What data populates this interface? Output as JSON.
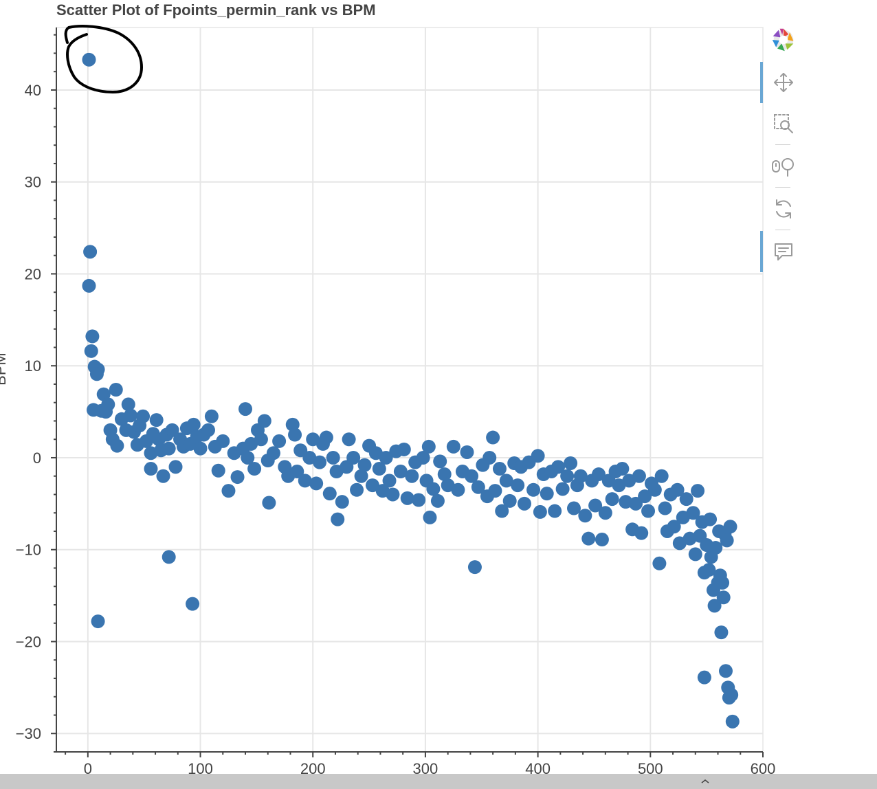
{
  "window": {
    "title": "Scatter Plot of Fpoints_permin_rank vs BPM"
  },
  "toolbar": {
    "tools": [
      {
        "name": "bokeh-logo",
        "icon": "bokeh-logo-icon"
      },
      {
        "name": "pan",
        "icon": "pan-icon",
        "active": true
      },
      {
        "name": "box-zoom",
        "icon": "box-zoom-icon"
      },
      {
        "name": "wheel-zoom",
        "icon": "wheel-zoom-icon"
      },
      {
        "name": "reset",
        "icon": "reset-icon"
      },
      {
        "name": "hover",
        "icon": "hover-icon",
        "active": true
      }
    ]
  },
  "colors": {
    "points": "#3a75b0",
    "grid": "#e6e6e6",
    "axis": "#444444",
    "annotation": "#000000"
  },
  "chart_data": {
    "type": "scatter",
    "title": "Scatter Plot of Fpoints_permin_rank vs BPM",
    "xlabel": "",
    "ylabel": "BPM",
    "xlim": [
      -28,
      600
    ],
    "ylim": [
      -32,
      46.8
    ],
    "x_ticks": [
      0,
      100,
      200,
      300,
      400,
      500,
      600
    ],
    "x_tick_labels": [
      "0",
      "100",
      "200",
      "300",
      "400",
      "500",
      "600"
    ],
    "y_ticks": [
      -30,
      -20,
      -10,
      0,
      10,
      20,
      30,
      40
    ],
    "y_tick_labels": [
      "−30",
      "−20",
      "−10",
      "0",
      "10",
      "20",
      "30",
      "40"
    ],
    "grid": true,
    "points": [
      [
        1,
        43.3
      ],
      [
        2,
        22.4
      ],
      [
        1,
        18.7
      ],
      [
        4,
        13.2
      ],
      [
        3,
        11.6
      ],
      [
        6,
        9.9
      ],
      [
        9,
        9.6
      ],
      [
        8,
        9.1
      ],
      [
        5,
        5.2
      ],
      [
        12,
        5.1
      ],
      [
        14,
        6.9
      ],
      [
        16,
        5.0
      ],
      [
        18,
        5.8
      ],
      [
        25,
        7.4
      ],
      [
        20,
        3.0
      ],
      [
        22,
        2.0
      ],
      [
        26,
        1.3
      ],
      [
        9,
        -17.8
      ],
      [
        30,
        4.2
      ],
      [
        34,
        3.0
      ],
      [
        36,
        5.8
      ],
      [
        38,
        4.6
      ],
      [
        41,
        2.8
      ],
      [
        44,
        1.4
      ],
      [
        46,
        3.5
      ],
      [
        49,
        4.5
      ],
      [
        52,
        1.8
      ],
      [
        56,
        0.5
      ],
      [
        58,
        2.6
      ],
      [
        61,
        4.1
      ],
      [
        63,
        2.0
      ],
      [
        65,
        0.8
      ],
      [
        67,
        -2.0
      ],
      [
        56,
        -1.2
      ],
      [
        70,
        2.5
      ],
      [
        72,
        1.0
      ],
      [
        75,
        3.0
      ],
      [
        78,
        -1.0
      ],
      [
        82,
        2.0
      ],
      [
        85,
        1.2
      ],
      [
        88,
        3.2
      ],
      [
        91,
        1.5
      ],
      [
        94,
        3.6
      ],
      [
        97,
        2.3
      ],
      [
        100,
        1.0
      ],
      [
        103,
        2.5
      ],
      [
        107,
        3.0
      ],
      [
        110,
        4.5
      ],
      [
        113,
        1.2
      ],
      [
        116,
        -1.4
      ],
      [
        120,
        1.8
      ],
      [
        72,
        -10.8
      ],
      [
        93,
        -15.9
      ],
      [
        125,
        -3.6
      ],
      [
        130,
        0.5
      ],
      [
        133,
        -2.1
      ],
      [
        138,
        1.0
      ],
      [
        140,
        5.3
      ],
      [
        142,
        0.0
      ],
      [
        145,
        1.5
      ],
      [
        148,
        -1.2
      ],
      [
        151,
        3.0
      ],
      [
        154,
        2.0
      ],
      [
        157,
        4.0
      ],
      [
        160,
        -0.3
      ],
      [
        161,
        -4.9
      ],
      [
        165,
        0.5
      ],
      [
        170,
        1.8
      ],
      [
        175,
        -1.0
      ],
      [
        178,
        -2.0
      ],
      [
        182,
        3.6
      ],
      [
        184,
        2.5
      ],
      [
        186,
        -1.5
      ],
      [
        189,
        0.8
      ],
      [
        193,
        -2.5
      ],
      [
        197,
        0.0
      ],
      [
        200,
        2.0
      ],
      [
        203,
        -2.8
      ],
      [
        206,
        -0.5
      ],
      [
        209,
        1.5
      ],
      [
        212,
        2.2
      ],
      [
        215,
        -3.9
      ],
      [
        218,
        0.0
      ],
      [
        221,
        -1.5
      ],
      [
        222,
        -6.7
      ],
      [
        226,
        -4.8
      ],
      [
        230,
        -1.0
      ],
      [
        232,
        2.0
      ],
      [
        236,
        0.0
      ],
      [
        239,
        -3.5
      ],
      [
        243,
        -2.0
      ],
      [
        246,
        -0.8
      ],
      [
        250,
        1.3
      ],
      [
        253,
        -3.0
      ],
      [
        256,
        0.5
      ],
      [
        259,
        -1.2
      ],
      [
        262,
        -3.6
      ],
      [
        265,
        0.0
      ],
      [
        268,
        -2.5
      ],
      [
        271,
        -4.0
      ],
      [
        274,
        0.7
      ],
      [
        278,
        -1.5
      ],
      [
        281,
        0.9
      ],
      [
        284,
        -4.4
      ],
      [
        288,
        -2.0
      ],
      [
        291,
        -0.5
      ],
      [
        294,
        -4.6
      ],
      [
        298,
        0.0
      ],
      [
        301,
        -2.5
      ],
      [
        303,
        1.2
      ],
      [
        304,
        -6.5
      ],
      [
        307,
        -3.4
      ],
      [
        311,
        -4.7
      ],
      [
        313,
        -0.4
      ],
      [
        317,
        -1.8
      ],
      [
        320,
        -3.0
      ],
      [
        325,
        1.2
      ],
      [
        329,
        -3.5
      ],
      [
        333,
        -1.5
      ],
      [
        337,
        0.6
      ],
      [
        341,
        -2.0
      ],
      [
        344,
        -11.9
      ],
      [
        347,
        -3.2
      ],
      [
        351,
        -0.8
      ],
      [
        355,
        -4.2
      ],
      [
        357,
        0.0
      ],
      [
        360,
        2.2
      ],
      [
        362,
        -3.6
      ],
      [
        366,
        -1.2
      ],
      [
        368,
        -5.8
      ],
      [
        372,
        -2.5
      ],
      [
        375,
        -4.7
      ],
      [
        379,
        -0.6
      ],
      [
        382,
        -3.0
      ],
      [
        385,
        -1.0
      ],
      [
        388,
        -5.0
      ],
      [
        392,
        -0.5
      ],
      [
        396,
        -3.5
      ],
      [
        400,
        0.2
      ],
      [
        402,
        -5.9
      ],
      [
        405,
        -1.8
      ],
      [
        408,
        -3.9
      ],
      [
        412,
        -1.5
      ],
      [
        415,
        -5.8
      ],
      [
        418,
        -1.0
      ],
      [
        422,
        -3.4
      ],
      [
        426,
        -2.0
      ],
      [
        429,
        -0.6
      ],
      [
        432,
        -5.5
      ],
      [
        435,
        -3.0
      ],
      [
        438,
        -2.0
      ],
      [
        442,
        -6.3
      ],
      [
        445,
        -8.8
      ],
      [
        448,
        -2.5
      ],
      [
        451,
        -5.2
      ],
      [
        454,
        -1.8
      ],
      [
        457,
        -8.9
      ],
      [
        460,
        -6.0
      ],
      [
        463,
        -2.5
      ],
      [
        466,
        -4.5
      ],
      [
        469,
        -1.5
      ],
      [
        472,
        -3.0
      ],
      [
        475,
        -1.2
      ],
      [
        478,
        -4.8
      ],
      [
        481,
        -2.5
      ],
      [
        484,
        -7.8
      ],
      [
        487,
        -5.0
      ],
      [
        490,
        -2.0
      ],
      [
        492,
        -8.2
      ],
      [
        495,
        -4.2
      ],
      [
        498,
        -5.8
      ],
      [
        501,
        -2.8
      ],
      [
        504,
        -3.5
      ],
      [
        508,
        -11.5
      ],
      [
        510,
        -2.0
      ],
      [
        513,
        -5.5
      ],
      [
        515,
        -8.0
      ],
      [
        518,
        -4.0
      ],
      [
        521,
        -7.5
      ],
      [
        524,
        -3.5
      ],
      [
        526,
        -9.3
      ],
      [
        529,
        -6.5
      ],
      [
        532,
        -4.5
      ],
      [
        535,
        -8.8
      ],
      [
        538,
        -6.0
      ],
      [
        540,
        -10.5
      ],
      [
        542,
        -3.6
      ],
      [
        544,
        -8.5
      ],
      [
        546,
        -7.0
      ],
      [
        548,
        -12.5
      ],
      [
        550,
        -9.5
      ],
      [
        552,
        -12.2
      ],
      [
        553,
        -6.7
      ],
      [
        554,
        -10.8
      ],
      [
        556,
        -14.4
      ],
      [
        557,
        -16.1
      ],
      [
        558,
        -9.8
      ],
      [
        560,
        -13.6
      ],
      [
        561,
        -8.0
      ],
      [
        562,
        -12.8
      ],
      [
        563,
        -19.0
      ],
      [
        564,
        -13.6
      ],
      [
        565,
        -15.2
      ],
      [
        566,
        -8.3
      ],
      [
        567,
        -23.2
      ],
      [
        568,
        -9.0
      ],
      [
        569,
        -25.0
      ],
      [
        570,
        -26.1
      ],
      [
        571,
        -7.5
      ],
      [
        572,
        -25.8
      ],
      [
        573,
        -28.7
      ],
      [
        548,
        -23.9
      ]
    ]
  }
}
